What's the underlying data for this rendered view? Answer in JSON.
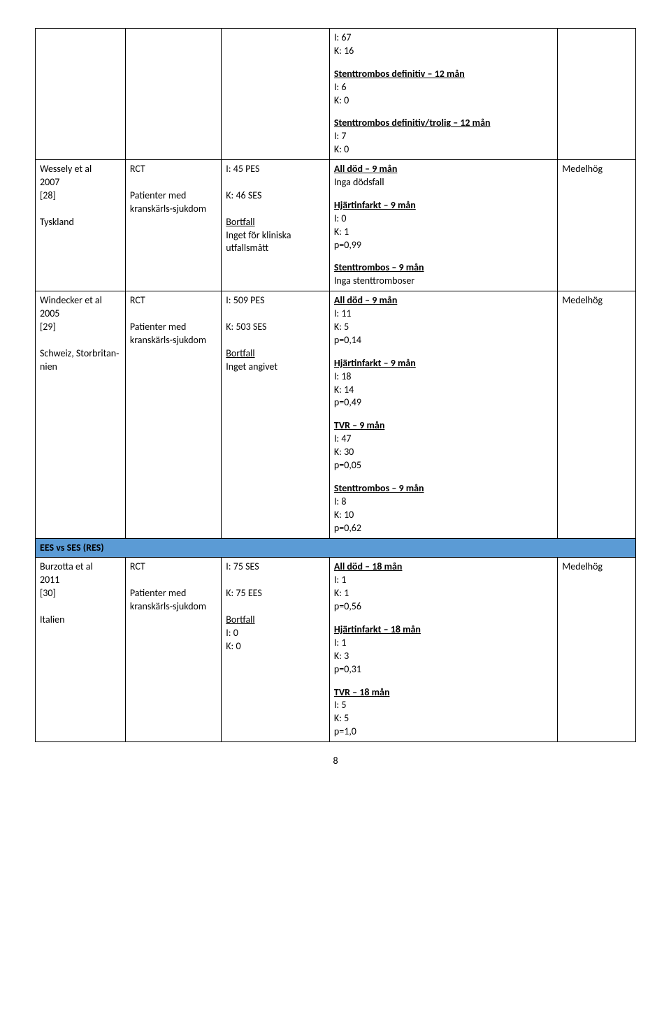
{
  "col_widths_pct": [
    15,
    16,
    18,
    38,
    13
  ],
  "section_header_bg": "#5b9bd5",
  "border_color": "#000000",
  "font_family": "Calibri",
  "base_font_size_pt": 11,
  "page_number": "8",
  "row1": {
    "col4": {
      "blk1_line1": "I: 67",
      "blk1_line2": "K: 16",
      "blk2_title": "Stenttrombos definitiv – 12 mån",
      "blk2_line1": "I: 6",
      "blk2_line2": "K: 0",
      "blk3_title": "Stenttrombos definitiv/trolig – 12 mån",
      "blk3_line1": "I: 7",
      "blk3_line2": "K: 0"
    }
  },
  "row2": {
    "col1_line1": "Wessely et al",
    "col1_line2": "2007",
    "col1_line3": "[28]",
    "col1_line4": "Tyskland",
    "col2_line1": "RCT",
    "col2_line2": "Patienter med kranskärls-sjukdom",
    "col3_line1": "I: 45 PES",
    "col3_line2": "K: 46 SES",
    "col3_bortfall_label": "Bortfall",
    "col3_bortfall_text": "Inget för kliniska utfallsmått",
    "col4": {
      "blk1_title": "All död – 9 mån",
      "blk1_line1": "Inga dödsfall",
      "blk2_title": "Hjärtinfarkt – 9 mån",
      "blk2_line1": "I: 0",
      "blk2_line2": "K: 1",
      "blk2_line3": "p=0,99",
      "blk3_title": "Stenttrombos – 9 mån",
      "blk3_line1": "Inga stenttromboser"
    },
    "col5": "Medelhög"
  },
  "row3": {
    "col1_line1": "Windecker et al",
    "col1_line2": "2005",
    "col1_line3": "[29]",
    "col1_line4": "Schweiz, Storbritan-nien",
    "col2_line1": "RCT",
    "col2_line2": "Patienter med kranskärls-sjukdom",
    "col3_line1": "I: 509 PES",
    "col3_line2": "K: 503 SES",
    "col3_bortfall_label": "Bortfall",
    "col3_bortfall_text": "Inget angivet",
    "col4": {
      "blk1_title": "All död – 9 mån",
      "blk1_line1": "I: 11",
      "blk1_line2": "K: 5",
      "blk1_line3": "p=0,14",
      "blk2_title": "Hjärtinfarkt – 9 mån",
      "blk2_line1": "I: 18",
      "blk2_line2": "K: 14",
      "blk2_line3": "p=0,49",
      "blk3_title": "TVR – 9 mån",
      "blk3_line1": "I: 47",
      "blk3_line2": "K: 30",
      "blk3_line3": "p=0,05",
      "blk4_title": "Stenttrombos – 9 mån",
      "blk4_line1": "I: 8",
      "blk4_line2": "K: 10",
      "blk4_line3": "p=0,62"
    },
    "col5": "Medelhög"
  },
  "section_header": "EES vs SES (RES)",
  "row4": {
    "col1_line1": "Burzotta et al",
    "col1_line2": "2011",
    "col1_line3": "[30]",
    "col1_line4": "Italien",
    "col2_line1": "RCT",
    "col2_line2": "Patienter med kranskärls-sjukdom",
    "col3_line1": "I: 75 SES",
    "col3_line2": "K: 75 EES",
    "col3_bortfall_label": "Bortfall",
    "col3_bortfall_line1": "I: 0",
    "col3_bortfall_line2": "K: 0",
    "col4": {
      "blk1_title": "All död – 18 mån",
      "blk1_line1": "I: 1",
      "blk1_line2": "K: 1",
      "blk1_line3": "p=0,56",
      "blk2_title": "Hjärtinfarkt – 18 mån",
      "blk2_line1": "I: 1",
      "blk2_line2": "K: 3",
      "blk2_line3": "p=0,31",
      "blk3_title": "TVR – 18 mån",
      "blk3_line1": "I: 5",
      "blk3_line2": "K: 5",
      "blk3_line3": "p=1,0"
    },
    "col5": "Medelhög"
  }
}
